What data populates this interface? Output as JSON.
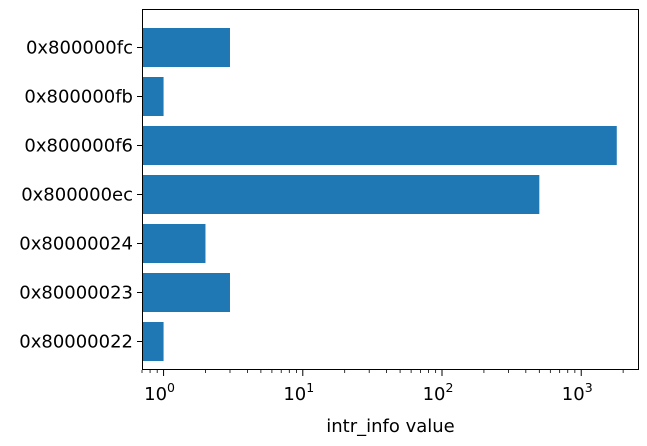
{
  "chart_data": {
    "type": "bar",
    "orientation": "horizontal",
    "categories": [
      "0x80000022",
      "0x80000023",
      "0x80000024",
      "0x800000ec",
      "0x800000f6",
      "0x800000fb",
      "0x800000fc"
    ],
    "values": [
      1,
      3,
      2,
      500,
      1800,
      1,
      3
    ],
    "title": "",
    "xlabel": "intr_info value",
    "ylabel": "",
    "xscale": "log",
    "xlim": [
      0.7,
      2600
    ],
    "x_ticks": [
      {
        "base": "10",
        "exp": "0",
        "value": 1
      },
      {
        "base": "10",
        "exp": "1",
        "value": 10
      },
      {
        "base": "10",
        "exp": "2",
        "value": 100
      },
      {
        "base": "10",
        "exp": "3",
        "value": 1000
      }
    ],
    "grid": false,
    "bar_color": "#1f77b4"
  }
}
